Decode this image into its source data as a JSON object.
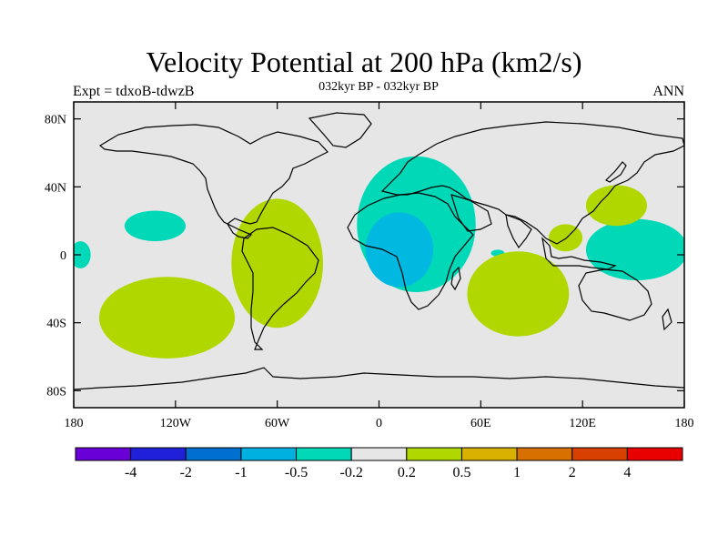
{
  "title": "Velocity Potential at 200 hPa (km2/s)",
  "left_string": "Expt = tdxoB-tdwzB",
  "center_string": "032kyr BP - 032kyr BP",
  "right_string": "ANN",
  "map": {
    "projection": "cylindrical equidistant",
    "lon_range": [
      -180,
      180
    ],
    "lat_range": [
      -90,
      90
    ],
    "lat_ticks": [
      {
        "value": 80,
        "label": "80N"
      },
      {
        "value": 40,
        "label": "40N"
      },
      {
        "value": 0,
        "label": "0"
      },
      {
        "value": -40,
        "label": "40S"
      },
      {
        "value": -80,
        "label": "80S"
      }
    ],
    "lon_ticks": [
      {
        "value": -180,
        "label": "180"
      },
      {
        "value": -120,
        "label": "120W"
      },
      {
        "value": -60,
        "label": "60W"
      },
      {
        "value": 0,
        "label": "0"
      },
      {
        "value": 60,
        "label": "60E"
      },
      {
        "value": 120,
        "label": "120E"
      },
      {
        "value": 180,
        "label": "180"
      }
    ],
    "background_color": "#e6e6e6",
    "coastline_color": "#000000",
    "regions": [
      {
        "name": "",
        "level": "-0.5 to -0.2",
        "color": "#00d8b8",
        "center": [
          -132,
          17
        ],
        "radius": [
          18,
          9
        ]
      },
      {
        "name": "",
        "level": "-0.5 to -0.2",
        "color": "#00d8b8",
        "center": [
          22,
          18
        ],
        "radius": [
          35,
          40
        ]
      },
      {
        "name": "",
        "level": "-0.5 to -0.2",
        "color": "#00d8b8",
        "center": [
          -176,
          0
        ],
        "radius": [
          6,
          8
        ]
      },
      {
        "name": "",
        "level": "-0.5 to -0.2",
        "color": "#00d8b8",
        "center": [
          152,
          3
        ],
        "radius": [
          30,
          18
        ]
      },
      {
        "name": "",
        "level": "-0.5 to -0.2",
        "color": "#00d8b8",
        "center": [
          70,
          1
        ],
        "radius": [
          4,
          2
        ]
      },
      {
        "name": "",
        "level": "-1 to -0.5",
        "color": "#00b8e0",
        "center": [
          12,
          3
        ],
        "radius": [
          20,
          22
        ]
      },
      {
        "name": "",
        "level": "0.2 to 0.5",
        "color": "#b0d800",
        "center": [
          -60,
          -5
        ],
        "radius": [
          27,
          38
        ]
      },
      {
        "name": "",
        "level": "0.2 to 0.5",
        "color": "#b0d800",
        "center": [
          -125,
          -37
        ],
        "radius": [
          40,
          24
        ]
      },
      {
        "name": "",
        "level": "0.2 to 0.5",
        "color": "#b0d800",
        "center": [
          82,
          -23
        ],
        "radius": [
          30,
          25
        ]
      },
      {
        "name": "",
        "level": "0.2 to 0.5",
        "color": "#b0d800",
        "center": [
          140,
          29
        ],
        "radius": [
          18,
          12
        ]
      },
      {
        "name": "",
        "level": "0.2 to 0.5",
        "color": "#b0d800",
        "center": [
          110,
          10
        ],
        "radius": [
          10,
          8
        ]
      }
    ]
  },
  "colorbar": {
    "colors": [
      "#6a00d8",
      "#2020d8",
      "#0070d0",
      "#00b0e0",
      "#00d8b8",
      "#e6e6e6",
      "#b0d800",
      "#d8b000",
      "#d87000",
      "#d84000",
      "#e80000"
    ],
    "labels": [
      "-4",
      "-2",
      "-1",
      "-0.5",
      "-0.2",
      "0.2",
      "0.5",
      "1",
      "2",
      "4"
    ]
  }
}
